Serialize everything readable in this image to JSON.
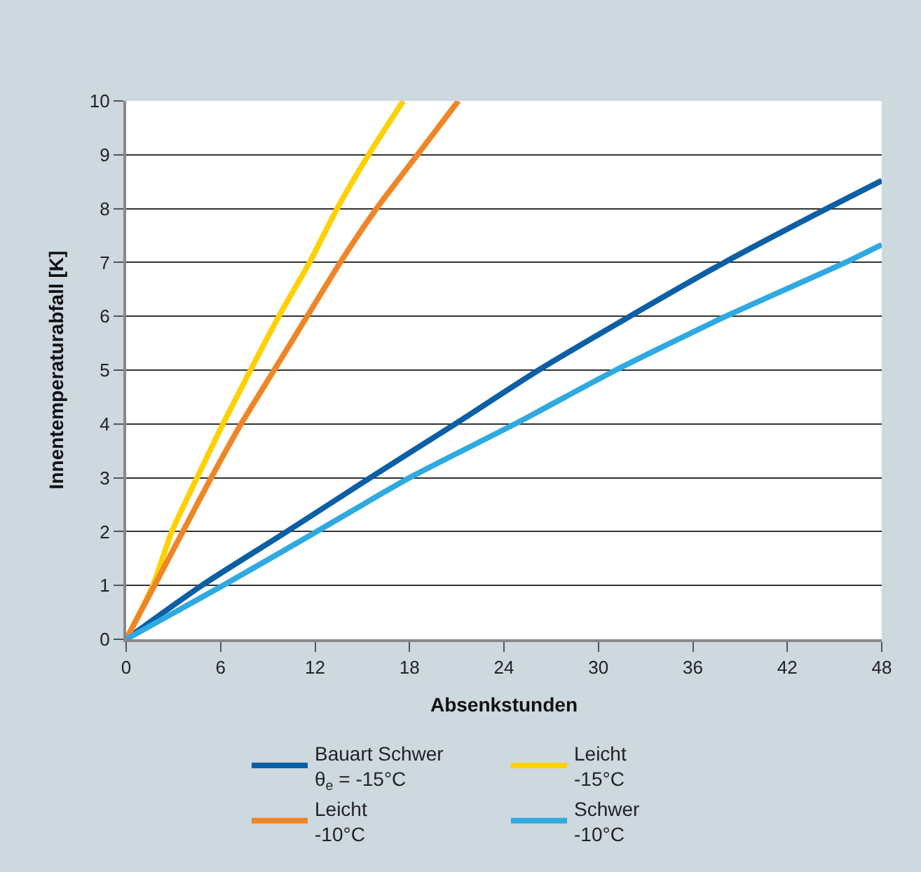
{
  "chart_data": {
    "type": "line",
    "xlabel": "Absenkstunden",
    "ylabel": "Innentemperaturabfall [K]",
    "xlim": [
      0,
      48
    ],
    "xticks": [
      0,
      6,
      12,
      18,
      24,
      30,
      36,
      42,
      48
    ],
    "ylim": [
      0,
      10
    ],
    "yticks": [
      0,
      1,
      2,
      3,
      4,
      5,
      6,
      7,
      8,
      9,
      10
    ],
    "grid": "y",
    "legend": "bottom",
    "marker": "none",
    "line_style": "solid",
    "series": [
      {
        "name": "Bauart Schwer\nθ$_{e}$ = -15°C",
        "color": "#0b5fa5",
        "x": [
          0,
          4.8,
          10.2,
          15.5,
          20.9,
          26.2,
          32.0,
          38.0,
          44.5,
          48
        ],
        "values": [
          0,
          1,
          2,
          3,
          4,
          5,
          6,
          7,
          8,
          8.52
        ]
      },
      {
        "name": "Leicht\n-15°C",
        "color": "#ffd100",
        "x": [
          0,
          1.7,
          2.9,
          4.5,
          6.15,
          7.9,
          9.7,
          11.65,
          13.4,
          15.4,
          17.6
        ],
        "values": [
          0,
          1,
          2,
          3,
          4,
          5,
          6,
          7,
          8,
          9,
          10
        ]
      },
      {
        "name": "Leicht\n-10°C",
        "color": "#f08526",
        "x": [
          0,
          1.8,
          3.6,
          5.4,
          7.3,
          9.4,
          11.5,
          13.6,
          15.9,
          18.5,
          21.1
        ],
        "values": [
          0,
          1,
          2,
          3,
          4,
          5,
          6,
          7,
          8,
          9,
          10
        ]
      },
      {
        "name": "Schwer\n-10°C",
        "color": "#2eaae1",
        "x": [
          0,
          6.15,
          12.1,
          18.0,
          24.7,
          31.1,
          38.1,
          45.7,
          48
        ],
        "values": [
          0,
          1,
          2,
          3,
          4,
          5,
          6,
          7,
          7.33
        ]
      }
    ]
  }
}
